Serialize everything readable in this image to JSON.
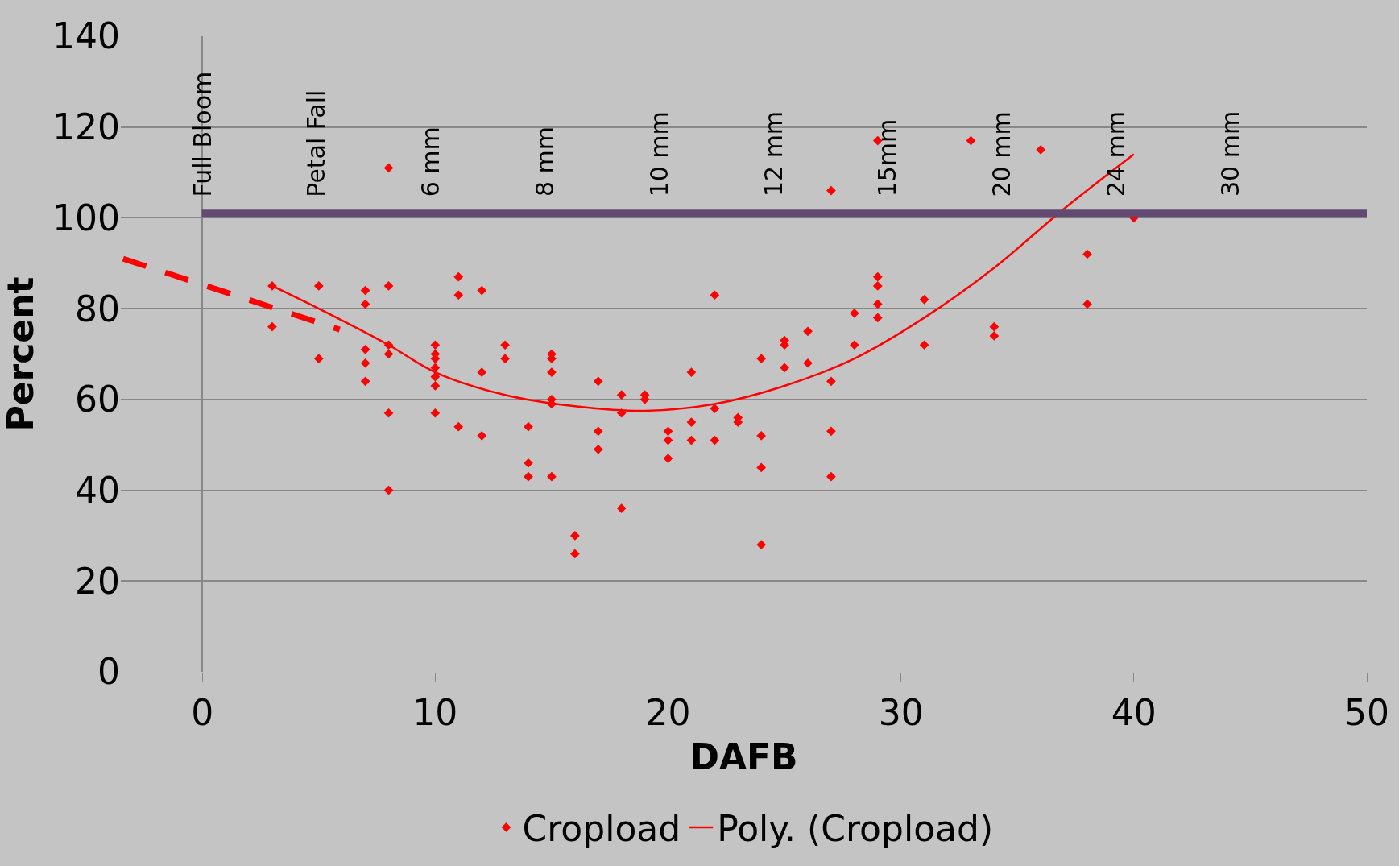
{
  "chart_data": {
    "type": "scatter",
    "xlabel": "DAFB",
    "ylabel": "Percent",
    "xlim": [
      -3.5,
      50
    ],
    "xticks": [
      0,
      10,
      20,
      30,
      40,
      50
    ],
    "ylim": [
      0,
      140
    ],
    "yticks": [
      0,
      20,
      40,
      60,
      80,
      100,
      120,
      140
    ],
    "grid": "y",
    "legend": "bottom",
    "marker": "diamond",
    "series": [
      {
        "name": "Cropload",
        "color": "#ff0000",
        "x": [
          3,
          3,
          5,
          5,
          7,
          7,
          7,
          7,
          7,
          8,
          8,
          8,
          8,
          8,
          8,
          10,
          10,
          10,
          10,
          10,
          10,
          10,
          11,
          11,
          11,
          12,
          12,
          12,
          13,
          13,
          14,
          14,
          14,
          15,
          15,
          15,
          15,
          15,
          15,
          16,
          16,
          17,
          17,
          17,
          18,
          18,
          18,
          19,
          19,
          20,
          20,
          20,
          21,
          21,
          21,
          22,
          22,
          22,
          23,
          23,
          24,
          24,
          24,
          24,
          25,
          25,
          25,
          26,
          26,
          27,
          27,
          27,
          27,
          28,
          28,
          29,
          29,
          29,
          29,
          29,
          31,
          31,
          33,
          34,
          34,
          36,
          38,
          38,
          40
        ],
        "values": [
          85,
          76,
          85,
          69,
          84,
          81,
          71,
          68,
          64,
          111,
          85,
          72,
          70,
          57,
          40,
          72,
          70,
          69,
          67,
          65,
          63,
          57,
          87,
          83,
          54,
          84,
          66,
          52,
          72,
          69,
          54,
          46,
          43,
          70,
          69,
          66,
          60,
          59,
          43,
          30,
          26,
          64,
          53,
          49,
          61,
          57,
          36,
          61,
          60,
          53,
          51,
          47,
          66,
          55,
          51,
          83,
          58,
          51,
          56,
          55,
          69,
          52,
          45,
          28,
          73,
          72,
          67,
          75,
          68,
          106,
          64,
          53,
          43,
          79,
          72,
          117,
          87,
          85,
          81,
          78,
          82,
          72,
          117,
          76,
          74,
          115,
          92,
          81,
          100
        ]
      },
      {
        "name": "Poly. (Cropload)",
        "type": "line",
        "color": "#ff0000",
        "marker": "none",
        "line_style": "solid",
        "x": [
          3,
          5,
          8,
          10,
          13,
          16,
          19,
          22,
          25,
          28,
          31,
          34,
          37,
          40
        ],
        "values": [
          85,
          80,
          72,
          66,
          61,
          58.5,
          57.5,
          59,
          63,
          69,
          78,
          89,
          102,
          114
        ]
      },
      {
        "type": "line",
        "color": "#ff0000",
        "marker": "none",
        "line_style": "dashed",
        "x": [
          -3.4,
          5.9
        ],
        "values": [
          91,
          75.4
        ]
      }
    ],
    "ref_lines": [
      {
        "axis": "y",
        "value": 101,
        "color": "#634a73"
      }
    ],
    "annotations": [
      "Full Bloom",
      "Petal Fall",
      "6 mm",
      "8 mm",
      "10 mm",
      "12 mm",
      "15mm",
      "20 mm",
      "24 mm",
      "30 mm"
    ]
  }
}
